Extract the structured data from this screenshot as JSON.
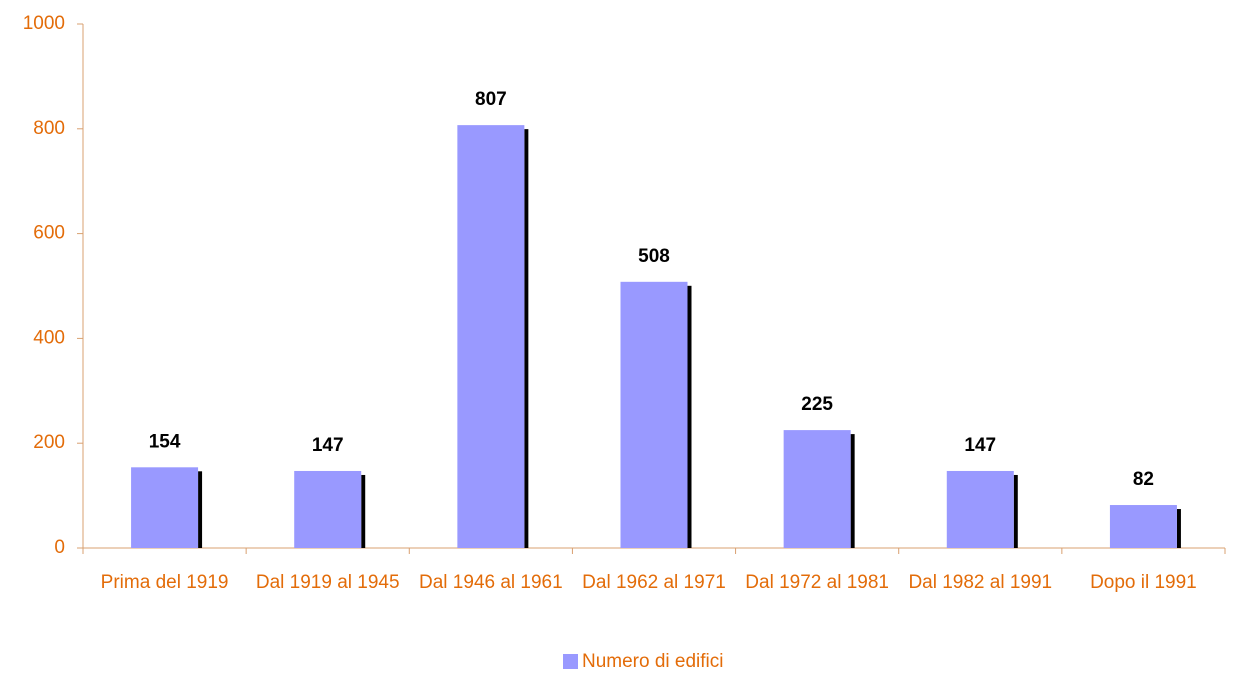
{
  "chart_data": {
    "type": "bar",
    "categories": [
      "Prima del 1919",
      "Dal 1919 al 1945",
      "Dal 1946 al 1961",
      "Dal 1962 al 1971",
      "Dal 1972 al 1981",
      "Dal 1982 al 1991",
      "Dopo il 1991"
    ],
    "series": [
      {
        "name": "Numero di edifici",
        "color": "#9999ff",
        "values": [
          154,
          147,
          807,
          508,
          225,
          147,
          82
        ]
      }
    ],
    "ylim": [
      0,
      1000
    ],
    "yticks": [
      0,
      200,
      400,
      600,
      800,
      1000
    ],
    "grid": false,
    "legend": "bottom"
  }
}
